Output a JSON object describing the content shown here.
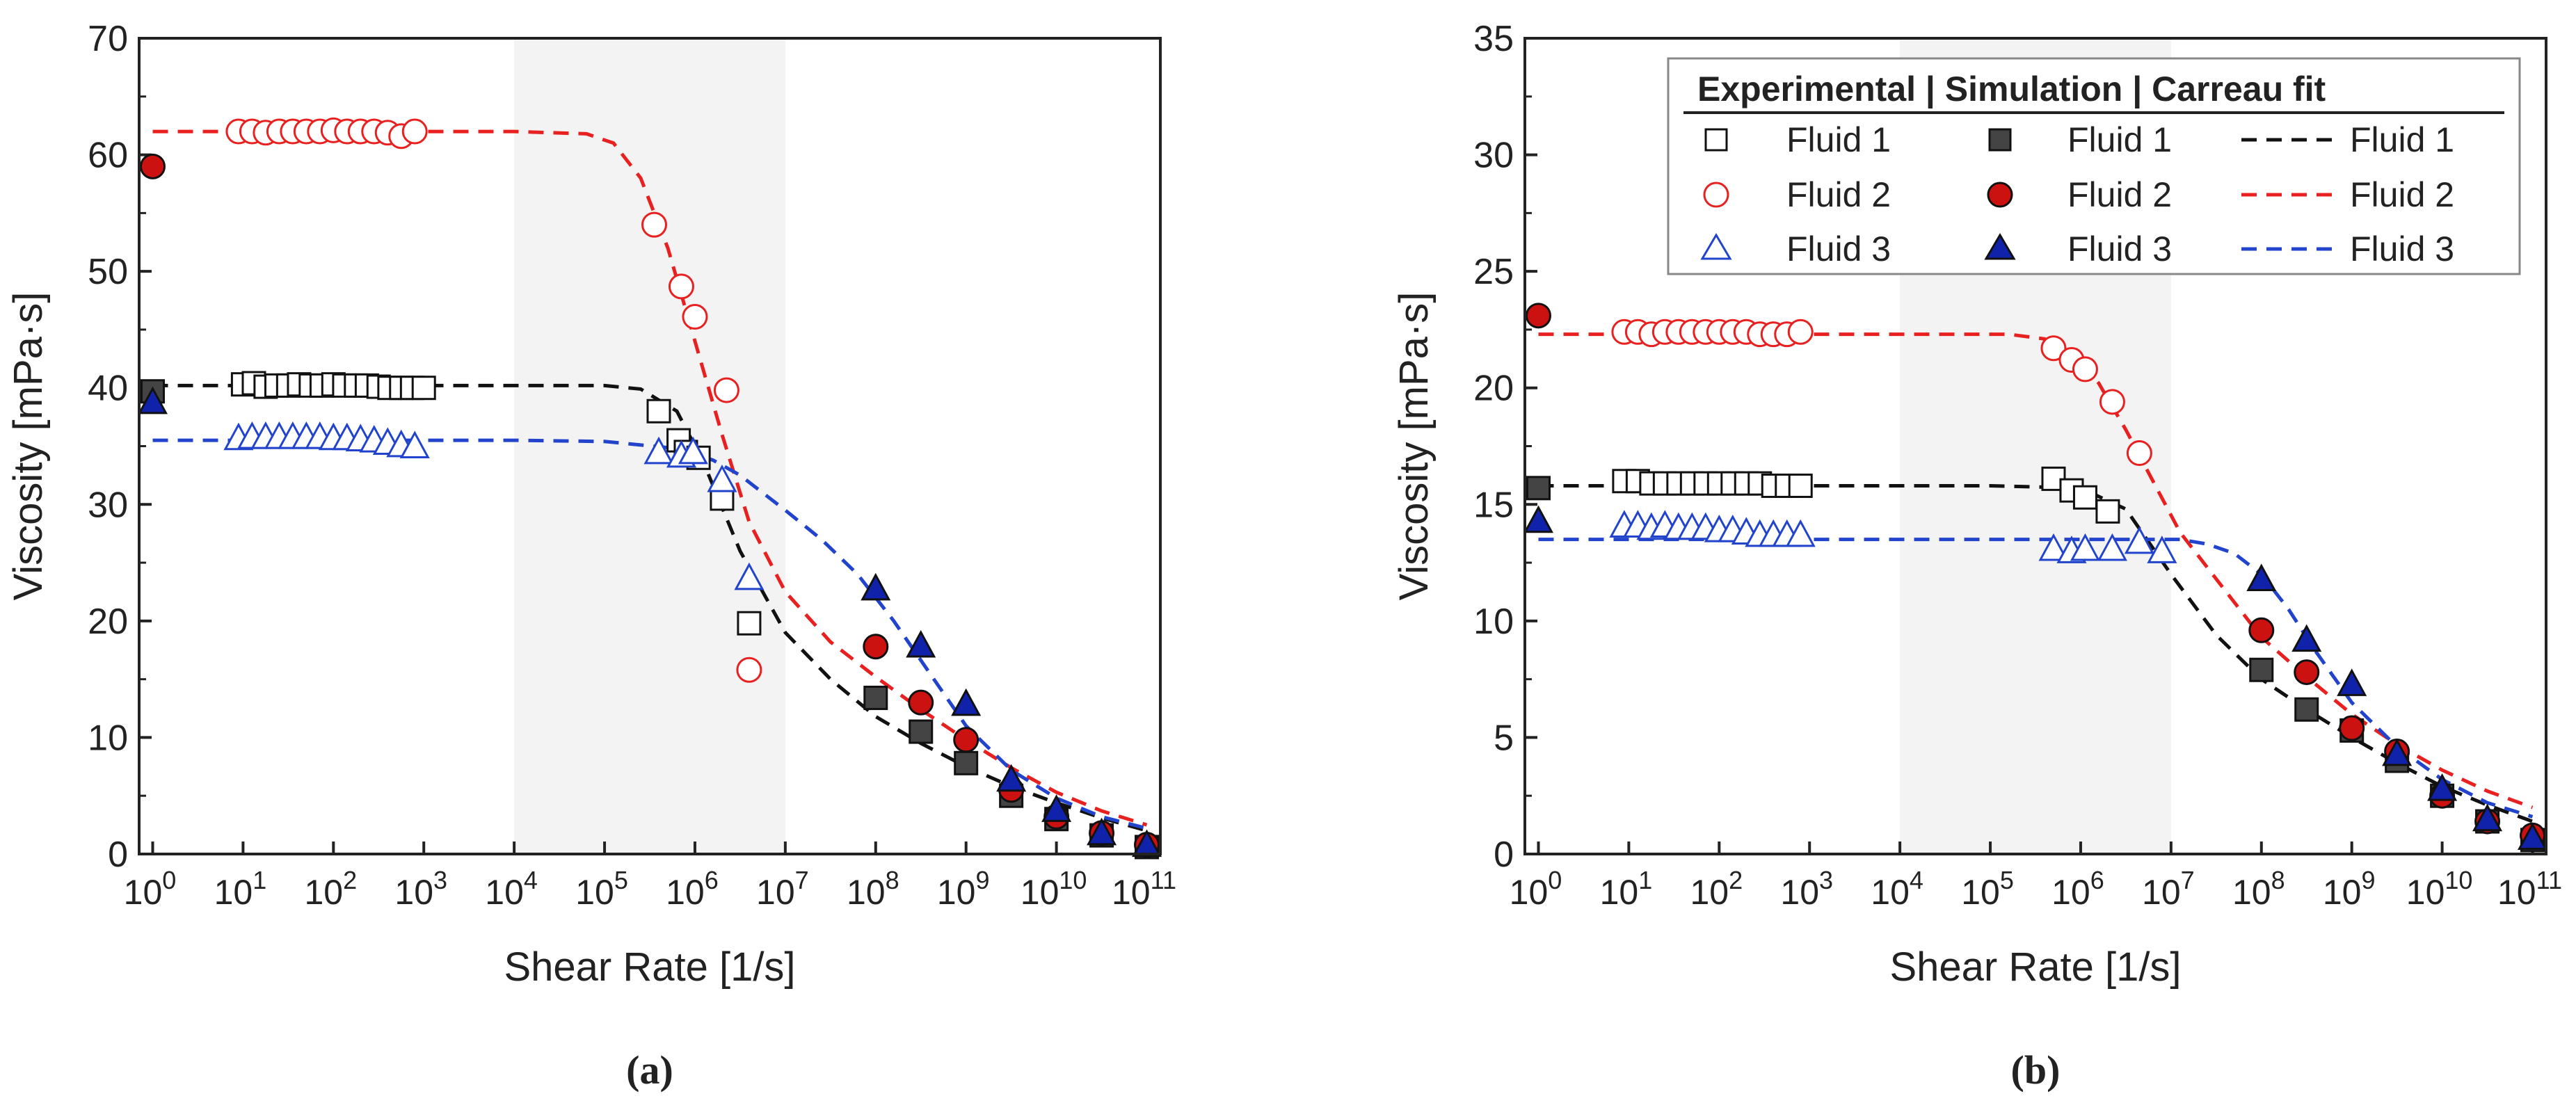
{
  "figure": {
    "panel_a_label": "(a)",
    "panel_b_label": "(b)"
  },
  "legend": {
    "header": "Experimental | Simulation | Carreau fit",
    "rows": [
      {
        "exp_label": "Fluid 1",
        "sim_label": "Fluid 1",
        "fit_label": "Fluid 1"
      },
      {
        "exp_label": "Fluid 2",
        "sim_label": "Fluid 2",
        "fit_label": "Fluid 2"
      },
      {
        "exp_label": "Fluid 3",
        "sim_label": "Fluid 3",
        "fit_label": "Fluid 3"
      }
    ]
  },
  "colors": {
    "fluid1_line": "#111111",
    "fluid1_sim_fill": "#444444",
    "fluid2": "#e8201f",
    "fluid2_sim_fill": "#cc1111",
    "fluid3": "#2244cc",
    "fluid3_sim_fill": "#1122aa",
    "shade": "#f3f3f3"
  },
  "chart_data": [
    {
      "id": "a",
      "type": "scatter",
      "title": "",
      "xlabel": "Shear Rate [1/s]",
      "ylabel": "Viscosity [mPa·s]",
      "xscale": "log",
      "xlim_log10": [
        -0.15,
        11.15
      ],
      "ylim": [
        0,
        70
      ],
      "yticks": [
        0,
        10,
        20,
        30,
        40,
        50,
        60,
        70
      ],
      "xtick_exponents": [
        0,
        1,
        2,
        3,
        4,
        5,
        6,
        7,
        8,
        9,
        10,
        11
      ],
      "shaded_region_log10": [
        4,
        7
      ],
      "series": [
        {
          "name": "Fluid 1",
          "kind": "experimental",
          "marker": "square-open",
          "x_log10": [
            1.0,
            1.12,
            1.25,
            1.37,
            1.5,
            1.62,
            1.75,
            1.87,
            2.0,
            2.12,
            2.25,
            2.37,
            2.5,
            2.62,
            2.75,
            2.87,
            3.0,
            5.6,
            5.82,
            5.9,
            6.04,
            6.3,
            6.6
          ],
          "y": [
            40.3,
            40.4,
            40.1,
            40.2,
            40.2,
            40.3,
            40.2,
            40.2,
            40.3,
            40.2,
            40.2,
            40.2,
            40.1,
            40.0,
            40.0,
            40.0,
            40.0,
            38.0,
            35.5,
            34.5,
            34.0,
            30.5,
            19.8
          ]
        },
        {
          "name": "Fluid 2",
          "kind": "experimental",
          "marker": "circle-open",
          "x_log10": [
            0.95,
            1.1,
            1.25,
            1.4,
            1.55,
            1.7,
            1.85,
            2.0,
            2.15,
            2.3,
            2.45,
            2.6,
            2.75,
            2.9,
            5.55,
            5.85,
            6.0,
            6.35,
            6.6
          ],
          "y": [
            62.0,
            62.0,
            61.9,
            62.0,
            62.0,
            62.0,
            62.0,
            62.1,
            62.0,
            62.0,
            62.0,
            61.9,
            61.6,
            62.0,
            54.0,
            48.7,
            46.1,
            39.8,
            15.8
          ]
        },
        {
          "name": "Fluid 3",
          "kind": "experimental",
          "marker": "triangle-open",
          "x_log10": [
            0.95,
            1.1,
            1.25,
            1.4,
            1.55,
            1.7,
            1.85,
            2.0,
            2.15,
            2.3,
            2.45,
            2.6,
            2.75,
            2.9,
            5.6,
            5.85,
            5.98,
            6.3,
            6.6
          ],
          "y": [
            35.7,
            35.8,
            35.8,
            35.8,
            35.8,
            35.8,
            35.8,
            35.7,
            35.7,
            35.6,
            35.5,
            35.3,
            35.1,
            35.0,
            34.5,
            34.2,
            34.5,
            32.1,
            23.7
          ]
        },
        {
          "name": "Fluid 1",
          "kind": "simulation",
          "marker": "square-filled",
          "x_log10": [
            0,
            8,
            8.5,
            9,
            9.5,
            10,
            10.5,
            11
          ],
          "y": [
            39.7,
            13.4,
            10.5,
            7.8,
            5.0,
            3.0,
            1.6,
            0.6
          ]
        },
        {
          "name": "Fluid 2",
          "kind": "simulation",
          "marker": "circle-filled",
          "x_log10": [
            0,
            8,
            8.5,
            9,
            9.5,
            10,
            10.5,
            11
          ],
          "y": [
            59.0,
            17.8,
            13.0,
            9.8,
            5.5,
            3.2,
            1.8,
            0.8
          ]
        },
        {
          "name": "Fluid 3",
          "kind": "simulation",
          "marker": "triangle-filled",
          "x_log10": [
            0,
            8,
            8.5,
            9,
            9.5,
            10,
            10.5,
            11
          ],
          "y": [
            38.8,
            22.8,
            17.9,
            12.9,
            6.4,
            3.8,
            1.8,
            0.8
          ]
        },
        {
          "name": "Fluid 1",
          "kind": "carreau_fit",
          "line": "dashed",
          "x_log10": [
            0,
            4,
            5,
            5.4,
            5.8,
            6.1,
            6.5,
            7.0,
            7.5,
            8.0,
            8.5,
            9.0,
            9.5,
            10.0,
            10.5,
            11.0
          ],
          "y": [
            40.2,
            40.2,
            40.2,
            39.9,
            38.0,
            33.5,
            26.0,
            19.0,
            15.0,
            11.8,
            9.5,
            7.5,
            5.8,
            4.4,
            3.1,
            2.0
          ]
        },
        {
          "name": "Fluid 2",
          "kind": "carreau_fit",
          "line": "dashed",
          "x_log10": [
            0,
            4,
            4.8,
            5.1,
            5.4,
            5.7,
            6.0,
            6.3,
            6.6,
            7.0,
            7.5,
            8.0,
            8.5,
            9.0,
            9.5,
            10.0,
            10.5,
            11.0
          ],
          "y": [
            62.0,
            62.0,
            61.8,
            61.0,
            58.0,
            52.0,
            44.0,
            36.0,
            28.5,
            22.5,
            18.2,
            15.2,
            12.4,
            9.8,
            7.4,
            5.3,
            3.7,
            2.5
          ]
        },
        {
          "name": "Fluid 3",
          "kind": "carreau_fit",
          "line": "dashed",
          "x_log10": [
            0,
            4,
            5,
            5.8,
            6.2,
            6.5,
            7.0,
            7.4,
            7.8,
            8.2,
            8.6,
            9.0,
            9.5,
            10.0,
            10.5,
            11.0
          ],
          "y": [
            35.5,
            35.5,
            35.4,
            34.8,
            33.8,
            32.5,
            29.5,
            27.0,
            24.0,
            20.0,
            15.5,
            11.0,
            7.2,
            4.8,
            3.2,
            2.2
          ]
        }
      ]
    },
    {
      "id": "b",
      "type": "scatter",
      "title": "",
      "xlabel": "Shear Rate [1/s]",
      "ylabel": "Viscosity [mPa·s]",
      "xscale": "log",
      "xlim_log10": [
        -0.15,
        11.15
      ],
      "ylim": [
        0,
        35
      ],
      "yticks": [
        0,
        5,
        10,
        15,
        20,
        25,
        30,
        35
      ],
      "xtick_exponents": [
        0,
        1,
        2,
        3,
        4,
        5,
        6,
        7,
        8,
        9,
        10,
        11
      ],
      "shaded_region_log10": [
        4,
        7
      ],
      "series": [
        {
          "name": "Fluid 1",
          "kind": "experimental",
          "marker": "square-open",
          "x_log10": [
            0.95,
            1.1,
            1.25,
            1.4,
            1.55,
            1.7,
            1.85,
            2.0,
            2.15,
            2.3,
            2.45,
            2.6,
            2.75,
            2.9,
            5.7,
            5.9,
            6.05,
            6.3
          ],
          "y": [
            16.0,
            16.0,
            15.9,
            15.9,
            15.9,
            15.9,
            15.9,
            15.9,
            15.9,
            15.9,
            15.9,
            15.8,
            15.8,
            15.8,
            16.1,
            15.6,
            15.3,
            14.7
          ]
        },
        {
          "name": "Fluid 2",
          "kind": "experimental",
          "marker": "circle-open",
          "x_log10": [
            0.95,
            1.1,
            1.25,
            1.4,
            1.55,
            1.7,
            1.85,
            2.0,
            2.15,
            2.3,
            2.45,
            2.6,
            2.75,
            2.9,
            5.7,
            5.9,
            6.05,
            6.35,
            6.65
          ],
          "y": [
            22.4,
            22.4,
            22.3,
            22.4,
            22.4,
            22.4,
            22.4,
            22.4,
            22.4,
            22.4,
            22.3,
            22.3,
            22.3,
            22.4,
            21.7,
            21.2,
            20.8,
            19.4,
            17.2
          ]
        },
        {
          "name": "Fluid 3",
          "kind": "experimental",
          "marker": "triangle-open",
          "x_log10": [
            0.95,
            1.1,
            1.25,
            1.4,
            1.55,
            1.7,
            1.85,
            2.0,
            2.15,
            2.3,
            2.45,
            2.6,
            2.75,
            2.9,
            5.7,
            5.9,
            6.05,
            6.35,
            6.65,
            6.9
          ],
          "y": [
            14.1,
            14.1,
            14.0,
            14.1,
            14.0,
            14.0,
            14.0,
            13.9,
            13.9,
            13.8,
            13.7,
            13.7,
            13.7,
            13.7,
            13.1,
            13.0,
            13.1,
            13.1,
            13.4,
            13.0
          ]
        },
        {
          "name": "Fluid 1",
          "kind": "simulation",
          "marker": "square-filled",
          "x_log10": [
            0,
            8,
            8.5,
            9,
            9.5,
            10,
            10.5,
            11
          ],
          "y": [
            15.7,
            7.9,
            6.2,
            5.3,
            4.0,
            2.5,
            1.4,
            0.6
          ]
        },
        {
          "name": "Fluid 2",
          "kind": "simulation",
          "marker": "circle-filled",
          "x_log10": [
            0,
            8,
            8.5,
            9,
            9.5,
            10,
            10.5,
            11
          ],
          "y": [
            23.1,
            9.6,
            7.8,
            5.4,
            4.4,
            2.5,
            1.4,
            0.8
          ]
        },
        {
          "name": "Fluid 3",
          "kind": "simulation",
          "marker": "triangle-filled",
          "x_log10": [
            0,
            8,
            8.5,
            9,
            9.5,
            10,
            10.5,
            11
          ],
          "y": [
            14.3,
            11.8,
            9.2,
            7.3,
            4.3,
            2.8,
            1.5,
            0.7
          ]
        },
        {
          "name": "Fluid 1",
          "kind": "carreau_fit",
          "line": "dashed",
          "x_log10": [
            0,
            4,
            5,
            6.0,
            6.5,
            7.0,
            7.5,
            8.0,
            8.5,
            9.0,
            9.5,
            10.0,
            10.5,
            11.0
          ],
          "y": [
            15.8,
            15.8,
            15.8,
            15.7,
            14.8,
            12.0,
            9.4,
            7.5,
            6.2,
            5.0,
            3.9,
            2.9,
            2.1,
            1.4
          ]
        },
        {
          "name": "Fluid 2",
          "kind": "carreau_fit",
          "line": "dashed",
          "x_log10": [
            0,
            4,
            5.2,
            5.6,
            5.9,
            6.2,
            6.5,
            6.8,
            7.1,
            7.5,
            8.0,
            8.5,
            9.0,
            9.5,
            10.0,
            10.5,
            11.0
          ],
          "y": [
            22.3,
            22.3,
            22.3,
            22.1,
            21.5,
            20.2,
            18.2,
            16.0,
            13.8,
            11.8,
            9.3,
            7.6,
            6.0,
            4.7,
            3.6,
            2.7,
            2.0
          ]
        },
        {
          "name": "Fluid 3",
          "kind": "carreau_fit",
          "line": "dashed",
          "x_log10": [
            0,
            4,
            6.0,
            6.8,
            7.1,
            7.4,
            7.7,
            8.0,
            8.3,
            8.6,
            9.0,
            9.5,
            10.0,
            10.5,
            11.0
          ],
          "y": [
            13.5,
            13.5,
            13.5,
            13.5,
            13.5,
            13.3,
            12.9,
            12.0,
            10.5,
            8.7,
            6.5,
            4.6,
            3.2,
            2.2,
            1.6
          ]
        }
      ]
    }
  ]
}
